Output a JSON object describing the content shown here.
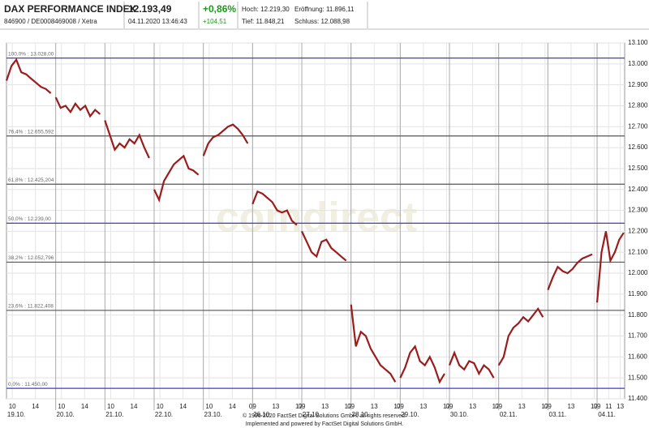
{
  "header": {
    "title": "DAX PERFORMANCE INDEX",
    "ids": "846900 / DE0008469008 / Xetra",
    "price": "12.193,49",
    "datetime": "04.11.2020 13:46:43",
    "change_pct": "+0,86%",
    "change": "+104,51",
    "high": "Hoch: 12.219,30",
    "open": "Eröffnung: 11.896,11",
    "low": "Tief: 11.848,21",
    "close": "Schluss: 12.088,98"
  },
  "chart_data": {
    "type": "line",
    "watermark": "comdirect",
    "days": [
      "19.10.",
      "20.10.",
      "21.10.",
      "22.10.",
      "23.10.",
      "26.10.",
      "27.10.",
      "28.10.",
      "29.10.",
      "30.10.",
      "02.11.",
      "03.11.",
      "04.11."
    ],
    "x": [
      0,
      0.1,
      0.2,
      0.3,
      0.4,
      0.5,
      0.6,
      0.7,
      0.8,
      0.9,
      0.95,
      1,
      1.1,
      1.2,
      1.3,
      1.4,
      1.5,
      1.6,
      1.7,
      1.8,
      1.9,
      1.95,
      2,
      2.1,
      2.2,
      2.3,
      2.4,
      2.5,
      2.6,
      2.7,
      2.8,
      2.9,
      2.95,
      3,
      3.1,
      3.2,
      3.3,
      3.4,
      3.5,
      3.6,
      3.7,
      3.8,
      3.9,
      3.95,
      4,
      4.1,
      4.2,
      4.3,
      4.4,
      4.5,
      4.6,
      4.7,
      4.8,
      4.9,
      4.95,
      5,
      5.1,
      5.2,
      5.3,
      5.4,
      5.5,
      5.6,
      5.7,
      5.8,
      5.9,
      5.95,
      6,
      6.1,
      6.2,
      6.3,
      6.4,
      6.5,
      6.6,
      6.7,
      6.8,
      6.9,
      6.95,
      7,
      7.1,
      7.2,
      7.3,
      7.4,
      7.5,
      7.6,
      7.7,
      7.8,
      7.9,
      7.95,
      8,
      8.1,
      8.2,
      8.3,
      8.4,
      8.5,
      8.6,
      8.7,
      8.8,
      8.9,
      8.95,
      9,
      9.1,
      9.2,
      9.3,
      9.4,
      9.5,
      9.6,
      9.7,
      9.8,
      9.9,
      9.95,
      10,
      10.1,
      10.2,
      10.3,
      10.4,
      10.5,
      10.6,
      10.7,
      10.8,
      10.9,
      10.95,
      11,
      11.1,
      11.2,
      11.3,
      11.4,
      11.5,
      11.6,
      11.7,
      11.8,
      11.9,
      11.95,
      12,
      12.09,
      12.18,
      12.27,
      12.36,
      12.45,
      12.54
    ],
    "series": [
      {
        "color": "#9b1c1c",
        "values": [
          12920,
          12990,
          13020,
          12960,
          12950,
          12930,
          12910,
          12890,
          12880,
          12860,
          null,
          12840,
          12790,
          12800,
          12770,
          12810,
          12780,
          12800,
          12750,
          12780,
          12760,
          null,
          12730,
          12660,
          12590,
          12620,
          12600,
          12640,
          12620,
          12660,
          12600,
          12550,
          null,
          12400,
          12350,
          12440,
          12480,
          12520,
          12540,
          12560,
          12500,
          12490,
          12470,
          null,
          12560,
          12620,
          12650,
          12660,
          12680,
          12700,
          12710,
          12690,
          12660,
          12620,
          null,
          12330,
          12390,
          12380,
          12360,
          12340,
          12300,
          12290,
          12300,
          12250,
          12230,
          null,
          12200,
          12150,
          12100,
          12080,
          12150,
          12160,
          12120,
          12100,
          12080,
          12060,
          null,
          11850,
          11650,
          11720,
          11700,
          11640,
          11600,
          11560,
          11540,
          11520,
          11480,
          null,
          11500,
          11550,
          11620,
          11650,
          11580,
          11560,
          11600,
          11550,
          11480,
          11520,
          null,
          11560,
          11620,
          11560,
          11540,
          11580,
          11570,
          11520,
          11560,
          11540,
          11500,
          null,
          11560,
          11600,
          11700,
          11740,
          11760,
          11790,
          11770,
          11800,
          11830,
          11790,
          null,
          11920,
          11980,
          12030,
          12010,
          12000,
          12020,
          12050,
          12070,
          12080,
          12090,
          null,
          11860,
          12100,
          12200,
          12060,
          12100,
          12160,
          12193
        ]
      }
    ],
    "xlim": [
      0,
      12.56
    ],
    "xticks": [
      {
        "value": 0.118,
        "label": "10"
      },
      {
        "value": 0.588,
        "label": "14"
      },
      {
        "value": 1.118,
        "label": "10"
      },
      {
        "value": 1.588,
        "label": "14"
      },
      {
        "value": 2.118,
        "label": "10"
      },
      {
        "value": 2.588,
        "label": "14"
      },
      {
        "value": 3.118,
        "label": "10"
      },
      {
        "value": 3.588,
        "label": "14"
      },
      {
        "value": 4.118,
        "label": "10"
      },
      {
        "value": 4.588,
        "label": "14"
      },
      {
        "value": 5,
        "label": "09"
      },
      {
        "value": 5.471,
        "label": "13"
      },
      {
        "value": 5.941,
        "label": "17"
      },
      {
        "value": 6,
        "label": "09"
      },
      {
        "value": 6.471,
        "label": "13"
      },
      {
        "value": 6.941,
        "label": "17"
      },
      {
        "value": 7,
        "label": "09"
      },
      {
        "value": 7.471,
        "label": "13"
      },
      {
        "value": 7.941,
        "label": "17"
      },
      {
        "value": 8,
        "label": "09"
      },
      {
        "value": 8.471,
        "label": "13"
      },
      {
        "value": 8.941,
        "label": "17"
      },
      {
        "value": 9,
        "label": "09"
      },
      {
        "value": 9.471,
        "label": "13"
      },
      {
        "value": 9.941,
        "label": "17"
      },
      {
        "value": 10,
        "label": "09"
      },
      {
        "value": 10.471,
        "label": "13"
      },
      {
        "value": 10.941,
        "label": "17"
      },
      {
        "value": 11,
        "label": "09"
      },
      {
        "value": 11.471,
        "label": "13"
      },
      {
        "value": 11.941,
        "label": "17"
      },
      {
        "value": 12,
        "label": "09"
      },
      {
        "value": 12.235,
        "label": "11"
      },
      {
        "value": 12.471,
        "label": "13"
      }
    ],
    "ylim": [
      11400,
      13100
    ],
    "yticks": [
      {
        "value": 11400,
        "label": "11.400"
      },
      {
        "value": 11500,
        "label": "11.500"
      },
      {
        "value": 11600,
        "label": "11.600"
      },
      {
        "value": 11700,
        "label": "11.700"
      },
      {
        "value": 11800,
        "label": "11.800"
      },
      {
        "value": 11900,
        "label": "11.900"
      },
      {
        "value": 12000,
        "label": "12.000"
      },
      {
        "value": 12100,
        "label": "12.100"
      },
      {
        "value": 12200,
        "label": "12.200"
      },
      {
        "value": 12300,
        "label": "12.300"
      },
      {
        "value": 12400,
        "label": "12.400"
      },
      {
        "value": 12500,
        "label": "12.500"
      },
      {
        "value": 12600,
        "label": "12.600"
      },
      {
        "value": 12700,
        "label": "12.700"
      },
      {
        "value": 12800,
        "label": "12.800"
      },
      {
        "value": 12900,
        "label": "12.900"
      },
      {
        "value": 13000,
        "label": "13.000"
      },
      {
        "value": 13100,
        "label": "13.100"
      }
    ],
    "grid": true,
    "levels": [
      {
        "value": 13028,
        "label": "100,0% : 13.028,00",
        "color": "#3b3bd6"
      },
      {
        "value": 12655.592,
        "label": "76,4% : 12.655,592",
        "color": "#555555"
      },
      {
        "value": 12425.204,
        "label": "61,8% : 12.425,204",
        "color": "#555555"
      },
      {
        "value": 12239,
        "label": "50,0% : 12.239,00",
        "color": "#3b3bd6"
      },
      {
        "value": 12052.796,
        "label": "38,2% : 12.052,796",
        "color": "#555555"
      },
      {
        "value": 11822.408,
        "label": "23,6% : 11.822,408",
        "color": "#555555"
      },
      {
        "value": 11450,
        "label": "0,0% : 11.450,00",
        "color": "#3b3bd6"
      }
    ]
  },
  "footer": {
    "line1": "© 1996-2020 FactSet Digital Solutions GmbH, all rights reserved.",
    "line2": "Implemented and powered by FactSet Digital Solutions GmbH."
  }
}
